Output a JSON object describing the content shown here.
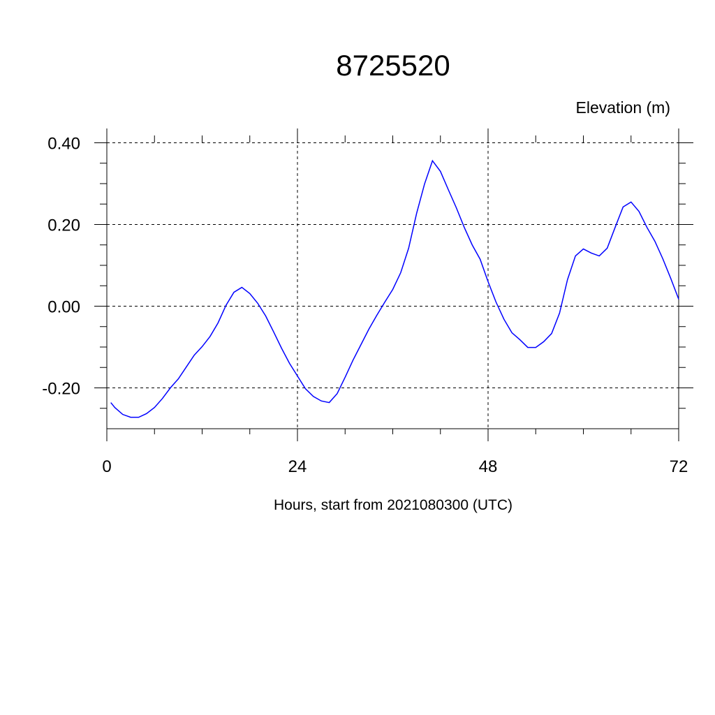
{
  "chart_data": {
    "type": "line",
    "title": "8725520",
    "y_axis_label": "Elevation (m)",
    "x_axis_label": "Hours, start from 2021080300 (UTC)",
    "x": [
      0.5,
      1,
      2,
      3,
      4,
      5,
      6,
      7,
      8,
      9,
      10,
      11,
      12,
      13,
      14,
      15,
      16,
      17,
      18,
      19,
      20,
      21,
      22,
      23,
      24,
      25,
      26,
      27,
      28,
      29,
      30,
      31,
      32,
      33,
      34,
      35,
      36,
      37,
      38,
      39,
      40,
      41,
      42,
      43,
      44,
      45,
      46,
      47,
      48,
      49,
      50,
      51,
      52,
      53,
      54,
      55,
      56,
      57,
      58,
      59,
      60,
      61,
      62,
      63,
      64,
      65,
      66,
      67,
      68,
      69,
      70,
      71,
      72
    ],
    "series": [
      {
        "name": "Elevation",
        "color": "#0000ff",
        "values": [
          -0.236,
          -0.248,
          -0.265,
          -0.272,
          -0.272,
          -0.263,
          -0.248,
          -0.226,
          -0.2,
          -0.178,
          -0.149,
          -0.12,
          -0.099,
          -0.074,
          -0.041,
          0.002,
          0.034,
          0.046,
          0.031,
          0.007,
          -0.024,
          -0.063,
          -0.103,
          -0.14,
          -0.171,
          -0.202,
          -0.221,
          -0.232,
          -0.236,
          -0.214,
          -0.174,
          -0.132,
          -0.094,
          -0.056,
          -0.022,
          0.01,
          0.041,
          0.082,
          0.142,
          0.227,
          0.299,
          0.356,
          0.33,
          0.285,
          0.241,
          0.193,
          0.15,
          0.115,
          0.06,
          0.01,
          -0.032,
          -0.065,
          -0.082,
          -0.101,
          -0.101,
          -0.087,
          -0.067,
          -0.017,
          0.065,
          0.123,
          0.14,
          0.13,
          0.123,
          0.142,
          0.193,
          0.243,
          0.255,
          0.232,
          0.193,
          0.159,
          0.116,
          0.068,
          0.017
        ]
      }
    ],
    "xlim": [
      0,
      72
    ],
    "xticks": [
      0,
      24,
      48,
      72
    ],
    "xminorticks": [
      6,
      12,
      18,
      30,
      36,
      42,
      54,
      60,
      66
    ],
    "ylim": [
      -0.3,
      0.435
    ],
    "yticks": [
      {
        "value": -0.2,
        "label": "-0.20"
      },
      {
        "value": 0,
        "label": "0.00"
      },
      {
        "value": 0.2,
        "label": "0.20"
      },
      {
        "value": 0.4,
        "label": "0.40"
      }
    ],
    "yminorticks": [
      -0.25,
      -0.15,
      -0.1,
      -0.05,
      0.05,
      0.1,
      0.15,
      0.25,
      0.3,
      0.35
    ],
    "grid": true
  }
}
